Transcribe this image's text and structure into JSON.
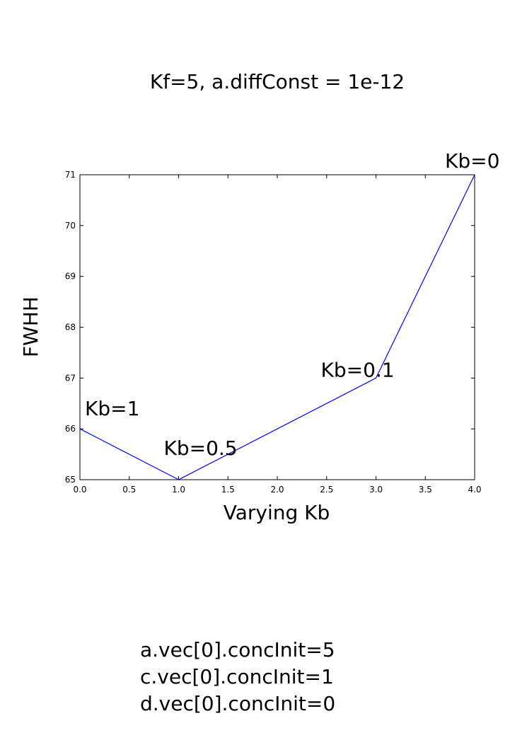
{
  "chart_data": {
    "type": "line",
    "title": "Kf=5, a.diffConst = 1e-12",
    "xlabel": "Varying Kb",
    "ylabel": "FWHH",
    "xlim": [
      0,
      4
    ],
    "ylim": [
      65,
      71
    ],
    "x_ticks": [
      "0.0",
      "0.5",
      "1.0",
      "1.5",
      "2.0",
      "2.5",
      "3.0",
      "3.5",
      "4.0"
    ],
    "y_ticks": [
      "65",
      "66",
      "67",
      "68",
      "69",
      "70",
      "71"
    ],
    "grid": false,
    "series": [
      {
        "color": "#0000ff",
        "x": [
          0,
          1,
          3,
          4
        ],
        "y": [
          66,
          65,
          67,
          71
        ]
      }
    ],
    "annotations": [
      {
        "text": "Kb=1",
        "x": 0,
        "y": 66
      },
      {
        "text": "Kb=0.5",
        "x": 1,
        "y": 65
      },
      {
        "text": "Kb=0.1",
        "x": 3,
        "y": 67
      },
      {
        "text": "Kb=0",
        "x": 4,
        "y": 71
      }
    ]
  },
  "caption": {
    "lines": [
      "a.vec[0].concInit=5",
      "c.vec[0].concInit=1",
      "d.vec[0].concInit=0"
    ]
  }
}
